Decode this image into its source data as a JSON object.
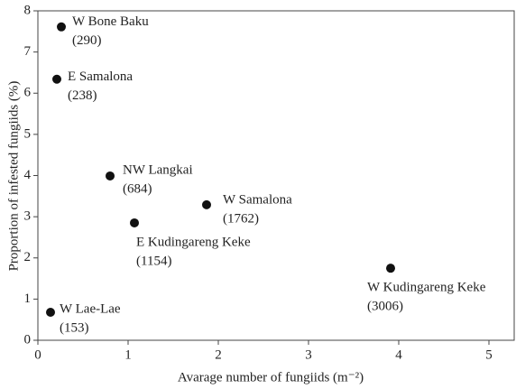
{
  "chart_data": {
    "type": "scatter",
    "x_label": "Avarage number of fungiids (m⁻²)",
    "y_label": "Proportion of infested fungiids (%)",
    "color": "#111111",
    "x": [
      0.26,
      0.21,
      0.8,
      1.87,
      1.07,
      3.91,
      0.14
    ],
    "values": [
      7.61,
      6.34,
      3.99,
      3.29,
      2.85,
      1.75,
      0.68
    ],
    "point_labels": [
      "W Bone Baku",
      "E Samalona",
      "NW Langkai",
      "W Samalona",
      "E Kudingareng Keke",
      "W Kudingareng Keke",
      "W Lae-Lae"
    ],
    "count_labels": [
      "(290)",
      "(238)",
      "(684)",
      "(1762)",
      "(1154)",
      "(3006)",
      "(153)"
    ],
    "xlim": [
      0,
      5.28
    ],
    "xticks": [
      0,
      1,
      2,
      3,
      4,
      5
    ],
    "ylim": [
      0,
      8
    ],
    "yticks": [
      0,
      1,
      2,
      3,
      4,
      5,
      6,
      7,
      8
    ]
  }
}
